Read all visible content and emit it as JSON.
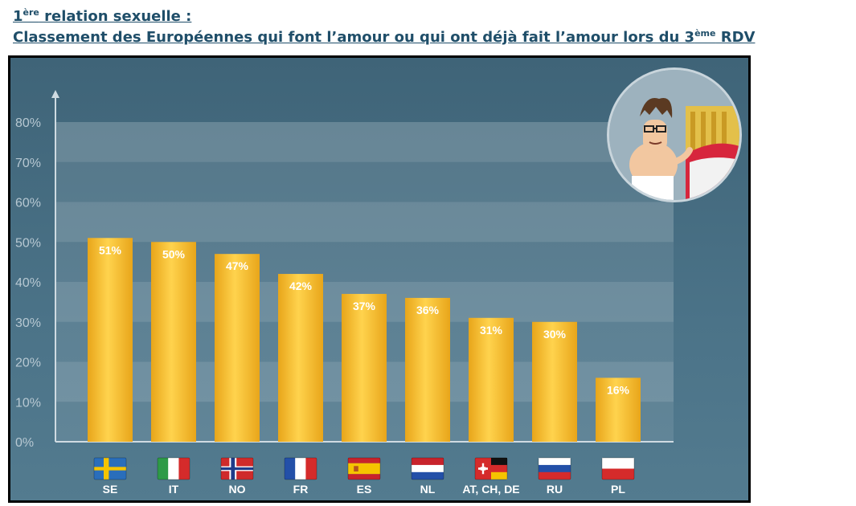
{
  "title": {
    "line1_sup": "ère",
    "line1_pre": "1",
    "line1_text": " relation sexuelle :",
    "line2_pre": "Classement des Européennes qui font l’amour ou qui ont déjà fait l’amour lors du 3",
    "line2_sup": "ème",
    "line2_post": " RDV"
  },
  "colors": {
    "bar_light": "#ffd34d",
    "bar_dark": "#e8a51a",
    "axis": "#cfdbe2",
    "tick_label": "#b7c8d2",
    "value_label": "#ffffff",
    "category_label": "#ffffff"
  },
  "illustration": {
    "icon": "cartoon-man-bed-icon"
  },
  "chart_data": {
    "type": "bar",
    "categories": [
      "SE",
      "IT",
      "NO",
      "FR",
      "ES",
      "NL",
      "AT, CH, DE",
      "RU",
      "PL"
    ],
    "flags": [
      "flag-se-icon",
      "flag-it-icon",
      "flag-no-icon",
      "flag-fr-icon",
      "flag-es-icon",
      "flag-nl-icon",
      "flag-at-ch-de-icon",
      "flag-ru-icon",
      "flag-pl-icon"
    ],
    "values": [
      51,
      50,
      47,
      42,
      37,
      36,
      31,
      30,
      16
    ],
    "value_labels": [
      "51%",
      "50%",
      "47%",
      "42%",
      "37%",
      "36%",
      "31%",
      "30%",
      "16%"
    ],
    "yticks": [
      0,
      10,
      20,
      30,
      40,
      50,
      60,
      70,
      80
    ],
    "ytick_labels": [
      "0%",
      "10%",
      "20%",
      "30%",
      "40%",
      "50%",
      "60%",
      "70%",
      "80%"
    ],
    "ylim": [
      0,
      80
    ],
    "xlabel": "",
    "ylabel": "",
    "grid": true
  }
}
